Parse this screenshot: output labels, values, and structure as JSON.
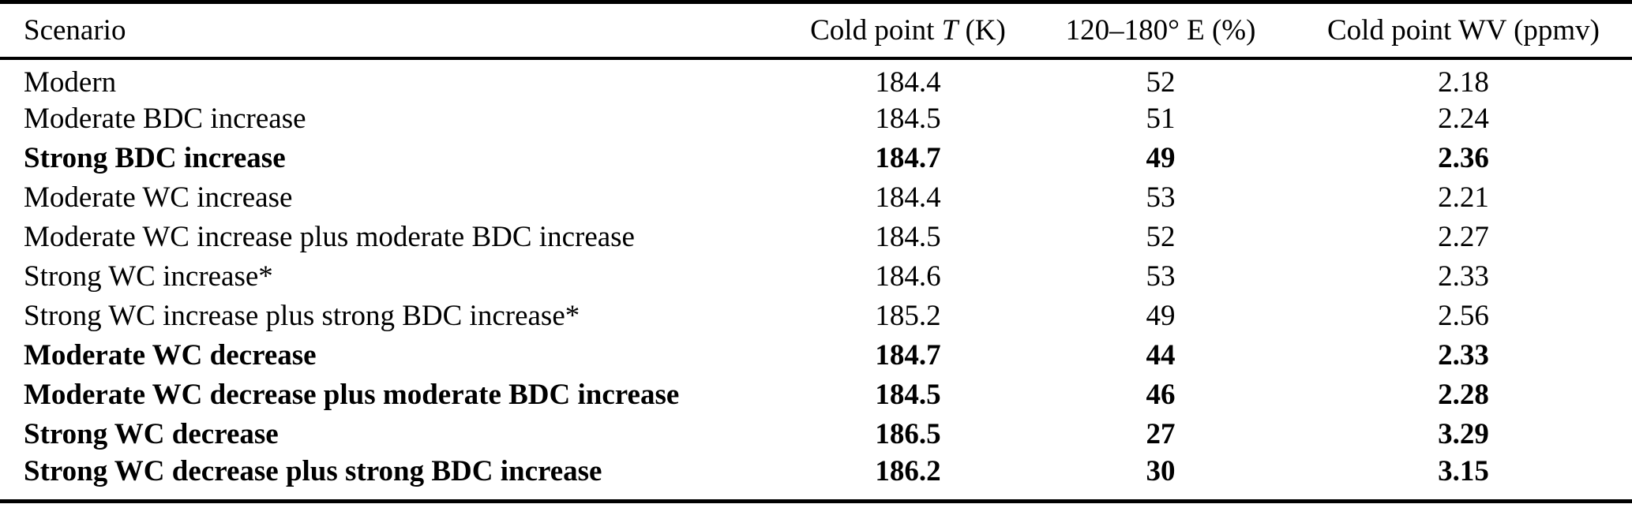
{
  "table": {
    "columns": [
      {
        "label": "Scenario"
      },
      {
        "label_pre": "Cold point ",
        "label_italic": "T",
        "label_post": " (K)"
      },
      {
        "label": "120–180° E (%)"
      },
      {
        "label": "Cold point WV (ppmv)"
      }
    ],
    "rows": [
      {
        "scenario": "Modern",
        "cold_point_t_k": "184.4",
        "lon_120_180_e_pct": "52",
        "cold_point_wv_ppmv": "2.18",
        "bold": false
      },
      {
        "scenario": "Moderate BDC increase",
        "cold_point_t_k": "184.5",
        "lon_120_180_e_pct": "51",
        "cold_point_wv_ppmv": "2.24",
        "bold": false
      },
      {
        "scenario": "Strong BDC increase",
        "cold_point_t_k": "184.7",
        "lon_120_180_e_pct": "49",
        "cold_point_wv_ppmv": "2.36",
        "bold": true
      },
      {
        "scenario": "Moderate WC increase",
        "cold_point_t_k": "184.4",
        "lon_120_180_e_pct": "53",
        "cold_point_wv_ppmv": "2.21",
        "bold": false
      },
      {
        "scenario": "Moderate WC increase plus moderate BDC increase",
        "cold_point_t_k": "184.5",
        "lon_120_180_e_pct": "52",
        "cold_point_wv_ppmv": "2.27",
        "bold": false
      },
      {
        "scenario": "Strong WC increase*",
        "cold_point_t_k": "184.6",
        "lon_120_180_e_pct": "53",
        "cold_point_wv_ppmv": "2.33",
        "bold": false
      },
      {
        "scenario": "Strong WC increase plus strong BDC increase*",
        "cold_point_t_k": "185.2",
        "lon_120_180_e_pct": "49",
        "cold_point_wv_ppmv": "2.56",
        "bold": false
      },
      {
        "scenario": "Moderate WC decrease",
        "cold_point_t_k": "184.7",
        "lon_120_180_e_pct": "44",
        "cold_point_wv_ppmv": "2.33",
        "bold": true
      },
      {
        "scenario": "Moderate WC decrease plus moderate BDC increase",
        "cold_point_t_k": "184.5",
        "lon_120_180_e_pct": "46",
        "cold_point_wv_ppmv": "2.28",
        "bold": true
      },
      {
        "scenario": "Strong WC decrease",
        "cold_point_t_k": "186.5",
        "lon_120_180_e_pct": "27",
        "cold_point_wv_ppmv": "3.29",
        "bold": true
      },
      {
        "scenario": "Strong WC decrease plus strong BDC increase",
        "cold_point_t_k": "186.2",
        "lon_120_180_e_pct": "30",
        "cold_point_wv_ppmv": "3.15",
        "bold": true
      }
    ],
    "colors": {
      "text": "#000000",
      "background": "#ffffff",
      "rule": "#000000"
    }
  }
}
